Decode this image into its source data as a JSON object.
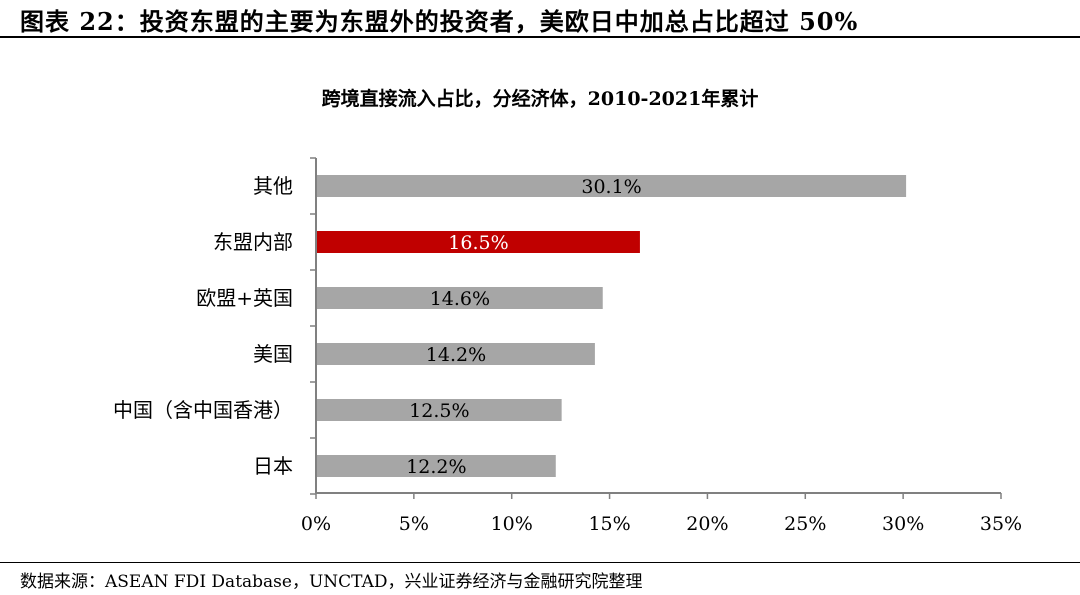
{
  "figure_title": "图表 22：投资东盟的主要为东盟外的投资者，美欧日中加总占比超过 50%",
  "source": "数据来源：ASEAN FDI Database，UNCTAD，兴业证券经济与金融研究院整理",
  "chart_data": {
    "type": "bar",
    "orientation": "horizontal",
    "title": "跨境直接流入占比，分经济体，2010-2021年累计",
    "categories": [
      "其他",
      "东盟内部",
      "欧盟+英国",
      "美国",
      "中国（含中国香港）",
      "日本"
    ],
    "values": [
      30.1,
      16.5,
      14.6,
      14.2,
      12.5,
      12.2
    ],
    "data_labels": [
      "30.1%",
      "16.5%",
      "14.6%",
      "14.2%",
      "12.5%",
      "12.2%"
    ],
    "highlight_index": 1,
    "colors": {
      "default": "#a6a6a6",
      "highlight": "#c00000",
      "label_default": "#000000",
      "label_highlight": "#ffffff"
    },
    "xlim": [
      0,
      35
    ],
    "xticks": [
      0,
      5,
      10,
      15,
      20,
      25,
      30,
      35
    ],
    "xtick_labels": [
      "0%",
      "5%",
      "10%",
      "15%",
      "20%",
      "25%",
      "30%",
      "35%"
    ],
    "xlabel": "",
    "ylabel": "",
    "grid": false,
    "legend": "none"
  }
}
